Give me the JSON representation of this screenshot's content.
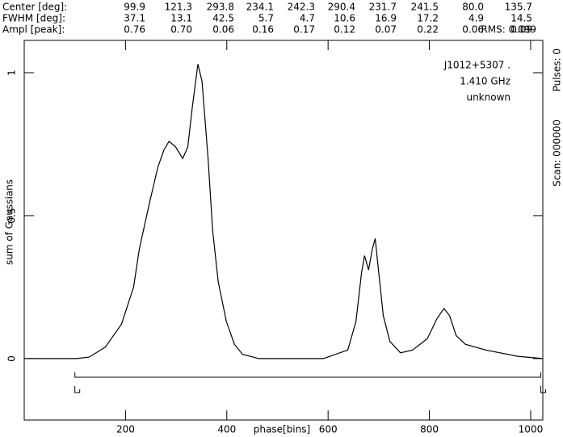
{
  "chart_data": {
    "type": "line",
    "header": {
      "rows": [
        {
          "label": "Center [deg]:",
          "values": [
            "99.9",
            "121.3",
            "293.8",
            "234.1",
            "242.3",
            "290.4",
            "231.7",
            "241.5",
            "80.0",
            "135.7"
          ]
        },
        {
          "label": "FWHM  [deg]:",
          "values": [
            "37.1",
            "13.1",
            "42.5",
            "5.7",
            "4.7",
            "10.6",
            "16.9",
            "17.2",
            "4.9",
            "14.5"
          ]
        },
        {
          "label": "Ampl  [peak]:",
          "values": [
            "0.76",
            "0.70",
            "0.06",
            "0.16",
            "0.17",
            "0.12",
            "0.07",
            "0.22",
            "0.06",
            "0.09"
          ]
        }
      ],
      "rms": "RMS: 0.099"
    },
    "ylabel": "sum of Gaussians",
    "xlabel": "phase[bins]",
    "annotations": [
      "J1012+5307 .",
      "1.410 GHz",
      "unknown"
    ],
    "side_labels": [
      "Pulses: 0",
      "Scan: 000000"
    ],
    "xlim": [
      0,
      1024
    ],
    "ylim": [
      -0.215,
      1.113
    ],
    "xticks": [
      200,
      400,
      600,
      800,
      1000
    ],
    "yticks": [
      0,
      0.5,
      1
    ],
    "color": "#000000",
    "window": [
      100,
      1020
    ],
    "x": [
      0,
      104,
      128,
      160,
      192,
      216,
      227,
      233,
      248,
      264,
      276,
      286,
      299,
      313,
      323,
      332,
      343,
      351,
      363,
      372,
      383,
      399,
      415,
      431,
      463,
      591,
      639,
      655,
      666,
      672,
      680,
      687,
      693,
      700,
      709,
      722,
      743,
      767,
      796,
      815,
      829,
      840,
      853,
      871,
      911,
      974,
      1024
    ],
    "values": [
      0,
      0,
      0.005,
      0.04,
      0.12,
      0.25,
      0.38,
      0.43,
      0.55,
      0.67,
      0.73,
      0.76,
      0.74,
      0.7,
      0.74,
      0.88,
      1.03,
      0.97,
      0.7,
      0.45,
      0.27,
      0.13,
      0.05,
      0.015,
      0,
      0,
      0.03,
      0.13,
      0.3,
      0.36,
      0.31,
      0.38,
      0.42,
      0.3,
      0.15,
      0.06,
      0.02,
      0.03,
      0.07,
      0.14,
      0.175,
      0.15,
      0.08,
      0.05,
      0.03,
      0.008,
      0
    ]
  }
}
